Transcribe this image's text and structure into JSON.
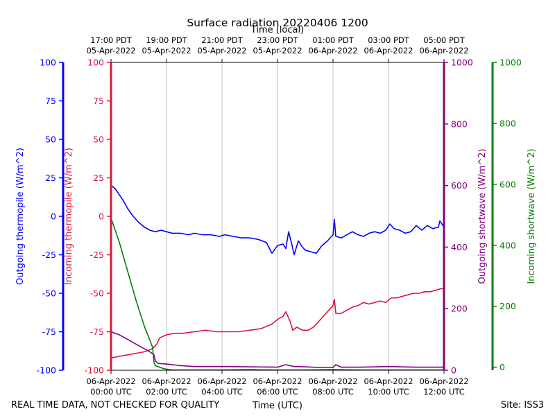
{
  "chart_data": {
    "type": "line",
    "title": "Surface radiation 20220406 1200",
    "top_axis_label": "Time (local)",
    "xlabel": "Time (UTC)",
    "footer_left": "REAL TIME DATA, NOT CHECKED FOR QUALITY",
    "footer_right": "Site: ISS3",
    "x_unit": "hours since 06-Apr-2022 00:00 UTC",
    "xlim": [
      0,
      12
    ],
    "grid": true,
    "bottom_ticks": [
      {
        "x": 0,
        "line1": "06-Apr-2022",
        "line2": "00:00 UTC"
      },
      {
        "x": 2,
        "line1": "06-Apr-2022",
        "line2": "02:00 UTC"
      },
      {
        "x": 4,
        "line1": "06-Apr-2022",
        "line2": "04:00 UTC"
      },
      {
        "x": 6,
        "line1": "06-Apr-2022",
        "line2": "06:00 UTC"
      },
      {
        "x": 8,
        "line1": "06-Apr-2022",
        "line2": "08:00 UTC"
      },
      {
        "x": 10,
        "line1": "06-Apr-2022",
        "line2": "10:00 UTC"
      },
      {
        "x": 12,
        "line1": "06-Apr-2022",
        "line2": "12:00 UTC"
      }
    ],
    "top_ticks": [
      {
        "x": 0,
        "line1": "17:00 PDT",
        "line2": "05-Apr-2022"
      },
      {
        "x": 2,
        "line1": "19:00 PDT",
        "line2": "05-Apr-2022"
      },
      {
        "x": 4,
        "line1": "21:00 PDT",
        "line2": "05-Apr-2022"
      },
      {
        "x": 6,
        "line1": "23:00 PDT",
        "line2": "05-Apr-2022"
      },
      {
        "x": 8,
        "line1": "01:00 PDT",
        "line2": "06-Apr-2022"
      },
      {
        "x": 10,
        "line1": "03:00 PDT",
        "line2": "06-Apr-2022"
      },
      {
        "x": 12,
        "line1": "05:00 PDT",
        "line2": "06-Apr-2022"
      }
    ],
    "axes": [
      {
        "id": "out_thermo",
        "label": "Outgoing thermopile (W/m^2)",
        "color": "#0000ff",
        "ylim": [
          -100,
          100
        ],
        "ticks": [
          -100,
          -75,
          -50,
          -25,
          0,
          25,
          50,
          75,
          100
        ]
      },
      {
        "id": "in_thermo",
        "label": "Incoming thermopile (W/m^2)",
        "color": "#dc143c",
        "ylim": [
          -100,
          100
        ],
        "ticks": [
          -100,
          -75,
          -50,
          -25,
          0,
          25,
          50,
          75,
          100
        ]
      },
      {
        "id": "out_sw",
        "label": "Outgoing shortwave (W/m^2)",
        "color": "#800080",
        "ylim": [
          0,
          1000
        ],
        "ticks": [
          0,
          200,
          400,
          600,
          800,
          1000
        ]
      },
      {
        "id": "in_sw",
        "label": "Incoming shortwave (W/m^2)",
        "color": "#008000",
        "ylim": [
          -10,
          1000
        ],
        "ticks": [
          0,
          200,
          400,
          600,
          800,
          1000
        ]
      }
    ],
    "series": [
      {
        "name": "Outgoing thermopile",
        "axis": "out_thermo",
        "color": "#0000ff",
        "x": [
          0,
          0.15,
          0.3,
          0.45,
          0.6,
          0.8,
          1.0,
          1.2,
          1.4,
          1.6,
          1.8,
          2.0,
          2.2,
          2.5,
          2.8,
          3.0,
          3.3,
          3.6,
          3.9,
          4.1,
          4.4,
          4.7,
          5.0,
          5.3,
          5.6,
          5.8,
          6.0,
          6.2,
          6.3,
          6.4,
          6.5,
          6.6,
          6.75,
          6.9,
          7.0,
          7.2,
          7.4,
          7.6,
          7.8,
          8.0,
          8.05,
          8.1,
          8.3,
          8.5,
          8.7,
          8.9,
          9.1,
          9.3,
          9.5,
          9.7,
          9.9,
          10.05,
          10.2,
          10.4,
          10.6,
          10.8,
          11.0,
          11.2,
          11.4,
          11.6,
          11.8,
          11.85,
          12.0
        ],
        "y": [
          20,
          18,
          14,
          10,
          5,
          0,
          -4,
          -7,
          -9,
          -10,
          -9,
          -10,
          -11,
          -11,
          -12,
          -11,
          -12,
          -12,
          -13,
          -12,
          -13,
          -14,
          -14,
          -15,
          -17,
          -24,
          -19,
          -18,
          -21,
          -10,
          -17,
          -25,
          -16,
          -20,
          -22,
          -23,
          -24,
          -19,
          -16,
          -12,
          -2,
          -13,
          -14,
          -12,
          -10,
          -12,
          -13,
          -11,
          -10,
          -11,
          -9,
          -5,
          -8,
          -9,
          -11,
          -10,
          -6,
          -9,
          -6,
          -8,
          -7,
          -3,
          -7
        ]
      },
      {
        "name": "Incoming thermopile",
        "axis": "in_thermo",
        "color": "#dc143c",
        "x": [
          0,
          0.3,
          0.6,
          0.9,
          1.2,
          1.5,
          1.65,
          1.75,
          2.0,
          2.3,
          2.6,
          3.0,
          3.4,
          3.8,
          4.2,
          4.6,
          5.0,
          5.4,
          5.8,
          6.0,
          6.2,
          6.3,
          6.45,
          6.55,
          6.7,
          6.9,
          7.1,
          7.3,
          7.5,
          7.7,
          7.9,
          8.0,
          8.05,
          8.1,
          8.3,
          8.5,
          8.7,
          8.9,
          9.1,
          9.3,
          9.5,
          9.7,
          9.9,
          10.1,
          10.3,
          10.5,
          10.7,
          10.9,
          11.1,
          11.3,
          11.5,
          11.7,
          11.9,
          12.0
        ],
        "y": [
          -92,
          -91,
          -90,
          -89,
          -88,
          -86,
          -83,
          -79,
          -77,
          -76,
          -76,
          -75,
          -74,
          -75,
          -75,
          -75,
          -74,
          -73,
          -70,
          -67,
          -65,
          -62,
          -68,
          -74,
          -72,
          -74,
          -74,
          -72,
          -68,
          -64,
          -60,
          -58,
          -54,
          -63,
          -63,
          -61,
          -59,
          -58,
          -56,
          -57,
          -56,
          -55,
          -56,
          -53,
          -53,
          -52,
          -51,
          -50,
          -50,
          -49,
          -49,
          -48,
          -47,
          -47
        ]
      },
      {
        "name": "Outgoing shortwave",
        "axis": "out_sw",
        "color": "#800080",
        "x": [
          0,
          0.3,
          0.6,
          0.9,
          1.2,
          1.4,
          1.55,
          1.6,
          1.7,
          2.0,
          2.5,
          3.0,
          4.0,
          5.0,
          6.0,
          6.3,
          6.6,
          7.0,
          7.5,
          8.0,
          8.1,
          8.3,
          9.0,
          10.0,
          11.0,
          12.0
        ],
        "y": [
          125,
          115,
          100,
          85,
          70,
          60,
          50,
          30,
          22,
          20,
          15,
          12,
          12,
          11,
          10,
          18,
          12,
          11,
          9,
          9,
          18,
          10,
          10,
          12,
          10,
          10
        ]
      },
      {
        "name": "Incoming shortwave",
        "axis": "in_sw",
        "color": "#008000",
        "x": [
          0,
          0.3,
          0.6,
          0.9,
          1.2,
          1.5,
          1.55,
          1.6,
          1.9,
          2.2,
          2.5,
          3.0,
          4.0,
          5.0,
          6.0,
          7.0,
          8.0,
          9.0,
          10.0,
          11.0,
          12.0
        ],
        "y": [
          490,
          410,
          315,
          220,
          135,
          65,
          15,
          5,
          -5,
          -9,
          -9,
          -9,
          -9,
          -8,
          -9,
          -9,
          -8,
          -9,
          -9,
          -9,
          -9
        ]
      }
    ]
  }
}
